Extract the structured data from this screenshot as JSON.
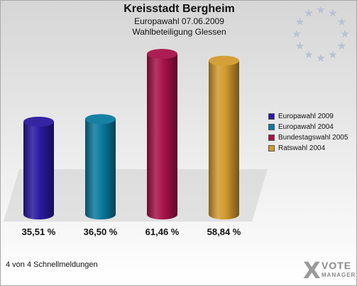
{
  "header": {
    "title": "Kreisstadt Bergheim",
    "subtitle": "Europawahl 07.06.2009",
    "subtitle2": "Wahlbeteiligung Glessen"
  },
  "chart_data": {
    "type": "bar",
    "categories": [
      "Europawahl 2009",
      "Europawahl 2004",
      "Bundestagswahl 2005",
      "Ratswahl 2004"
    ],
    "values": [
      35.51,
      36.5,
      61.46,
      58.84
    ],
    "value_labels": [
      "35,51 %",
      "36,50 %",
      "61,46 %",
      "58,84 %"
    ],
    "colors": [
      "#2a1aa0",
      "#0a7a9e",
      "#a8124a",
      "#d39a2e"
    ],
    "ylim": [
      0,
      65
    ],
    "legend_position": "right",
    "grid": false
  },
  "footer": {
    "status": "4 von 4 Schnellmeldungen"
  },
  "logo": {
    "mark": "X",
    "name": "VOTE",
    "sub": "MANAGER"
  },
  "icons": {
    "emblem": "eu-stars-icon"
  }
}
